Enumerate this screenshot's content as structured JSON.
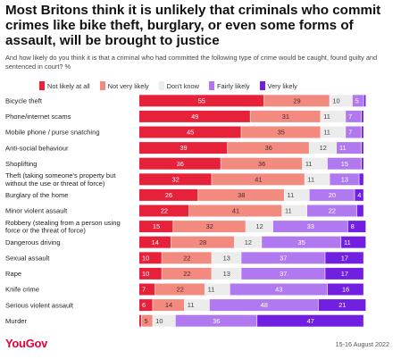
{
  "title": "Most Britons think it is unlikely that criminals who commit crimes like bike theft, burglary, or even some forms of assault, will be brought to justice",
  "subtitle": "And how likely do you think it is that a criminal who had committed the following type of crime would be caught, found guilty and sentenced in court? %",
  "source": "15-16 August 2022",
  "logo": "YouGov",
  "colors": {
    "not_likely_at_all": "#e8213b",
    "not_very_likely": "#f28a80",
    "dont_know": "#ececec",
    "fairly_likely": "#b179f0",
    "very_likely": "#7120e2"
  },
  "chart_data": {
    "type": "bar",
    "orientation": "horizontal",
    "stacked": true,
    "legend_placement": "top",
    "categories": [
      "Bicycle theft",
      "Phone/internet scams",
      "Mobile phone / purse snatching",
      "Anti-social behaviour",
      "Shoplifting",
      "Theft (taking someone's property but without the use or threat of force)",
      "Burglary of the home",
      "Minor violent assault",
      "Robbery (stealing from a person using force or the threat of force)",
      "Dangerous driving",
      "Sexual assault",
      "Rape",
      "Knife crime",
      "Serious violent assault",
      "Murder"
    ],
    "category_lines": [
      [
        "Bicycle theft"
      ],
      [
        "Phone/internet scams"
      ],
      [
        "Mobile phone / purse snatching"
      ],
      [
        "Anti-social behaviour"
      ],
      [
        "Shoplifting"
      ],
      [
        "Theft (taking someone's property but",
        "without the use or threat of force)"
      ],
      [
        "Burglary of the home"
      ],
      [
        "Minor violent assault"
      ],
      [
        "Robbery (stealing from a person using",
        "force or the threat of force)"
      ],
      [
        "Dangerous driving"
      ],
      [
        "Sexual assault"
      ],
      [
        "Rape"
      ],
      [
        "Knife crime"
      ],
      [
        "Serious violent assault"
      ],
      [
        "Murder"
      ]
    ],
    "series": [
      {
        "name": "Not likely at all",
        "values": [
          55,
          49,
          45,
          39,
          36,
          32,
          26,
          22,
          15,
          14,
          10,
          10,
          7,
          6,
          1
        ]
      },
      {
        "name": "Not very likely",
        "values": [
          29,
          31,
          35,
          36,
          36,
          41,
          38,
          41,
          32,
          28,
          22,
          22,
          22,
          14,
          5
        ]
      },
      {
        "name": "Don't know",
        "values": [
          10,
          11,
          11,
          12,
          11,
          11,
          11,
          11,
          12,
          12,
          13,
          13,
          11,
          11,
          10
        ]
      },
      {
        "name": "Fairly likely",
        "values": [
          5,
          7,
          7,
          11,
          15,
          13,
          20,
          22,
          33,
          35,
          37,
          37,
          43,
          48,
          36
        ]
      },
      {
        "name": "Very likely",
        "values": [
          1,
          1,
          1,
          1,
          1,
          2,
          4,
          3,
          8,
          11,
          17,
          17,
          16,
          21,
          47
        ]
      }
    ],
    "xlim": [
      0,
      100
    ]
  }
}
